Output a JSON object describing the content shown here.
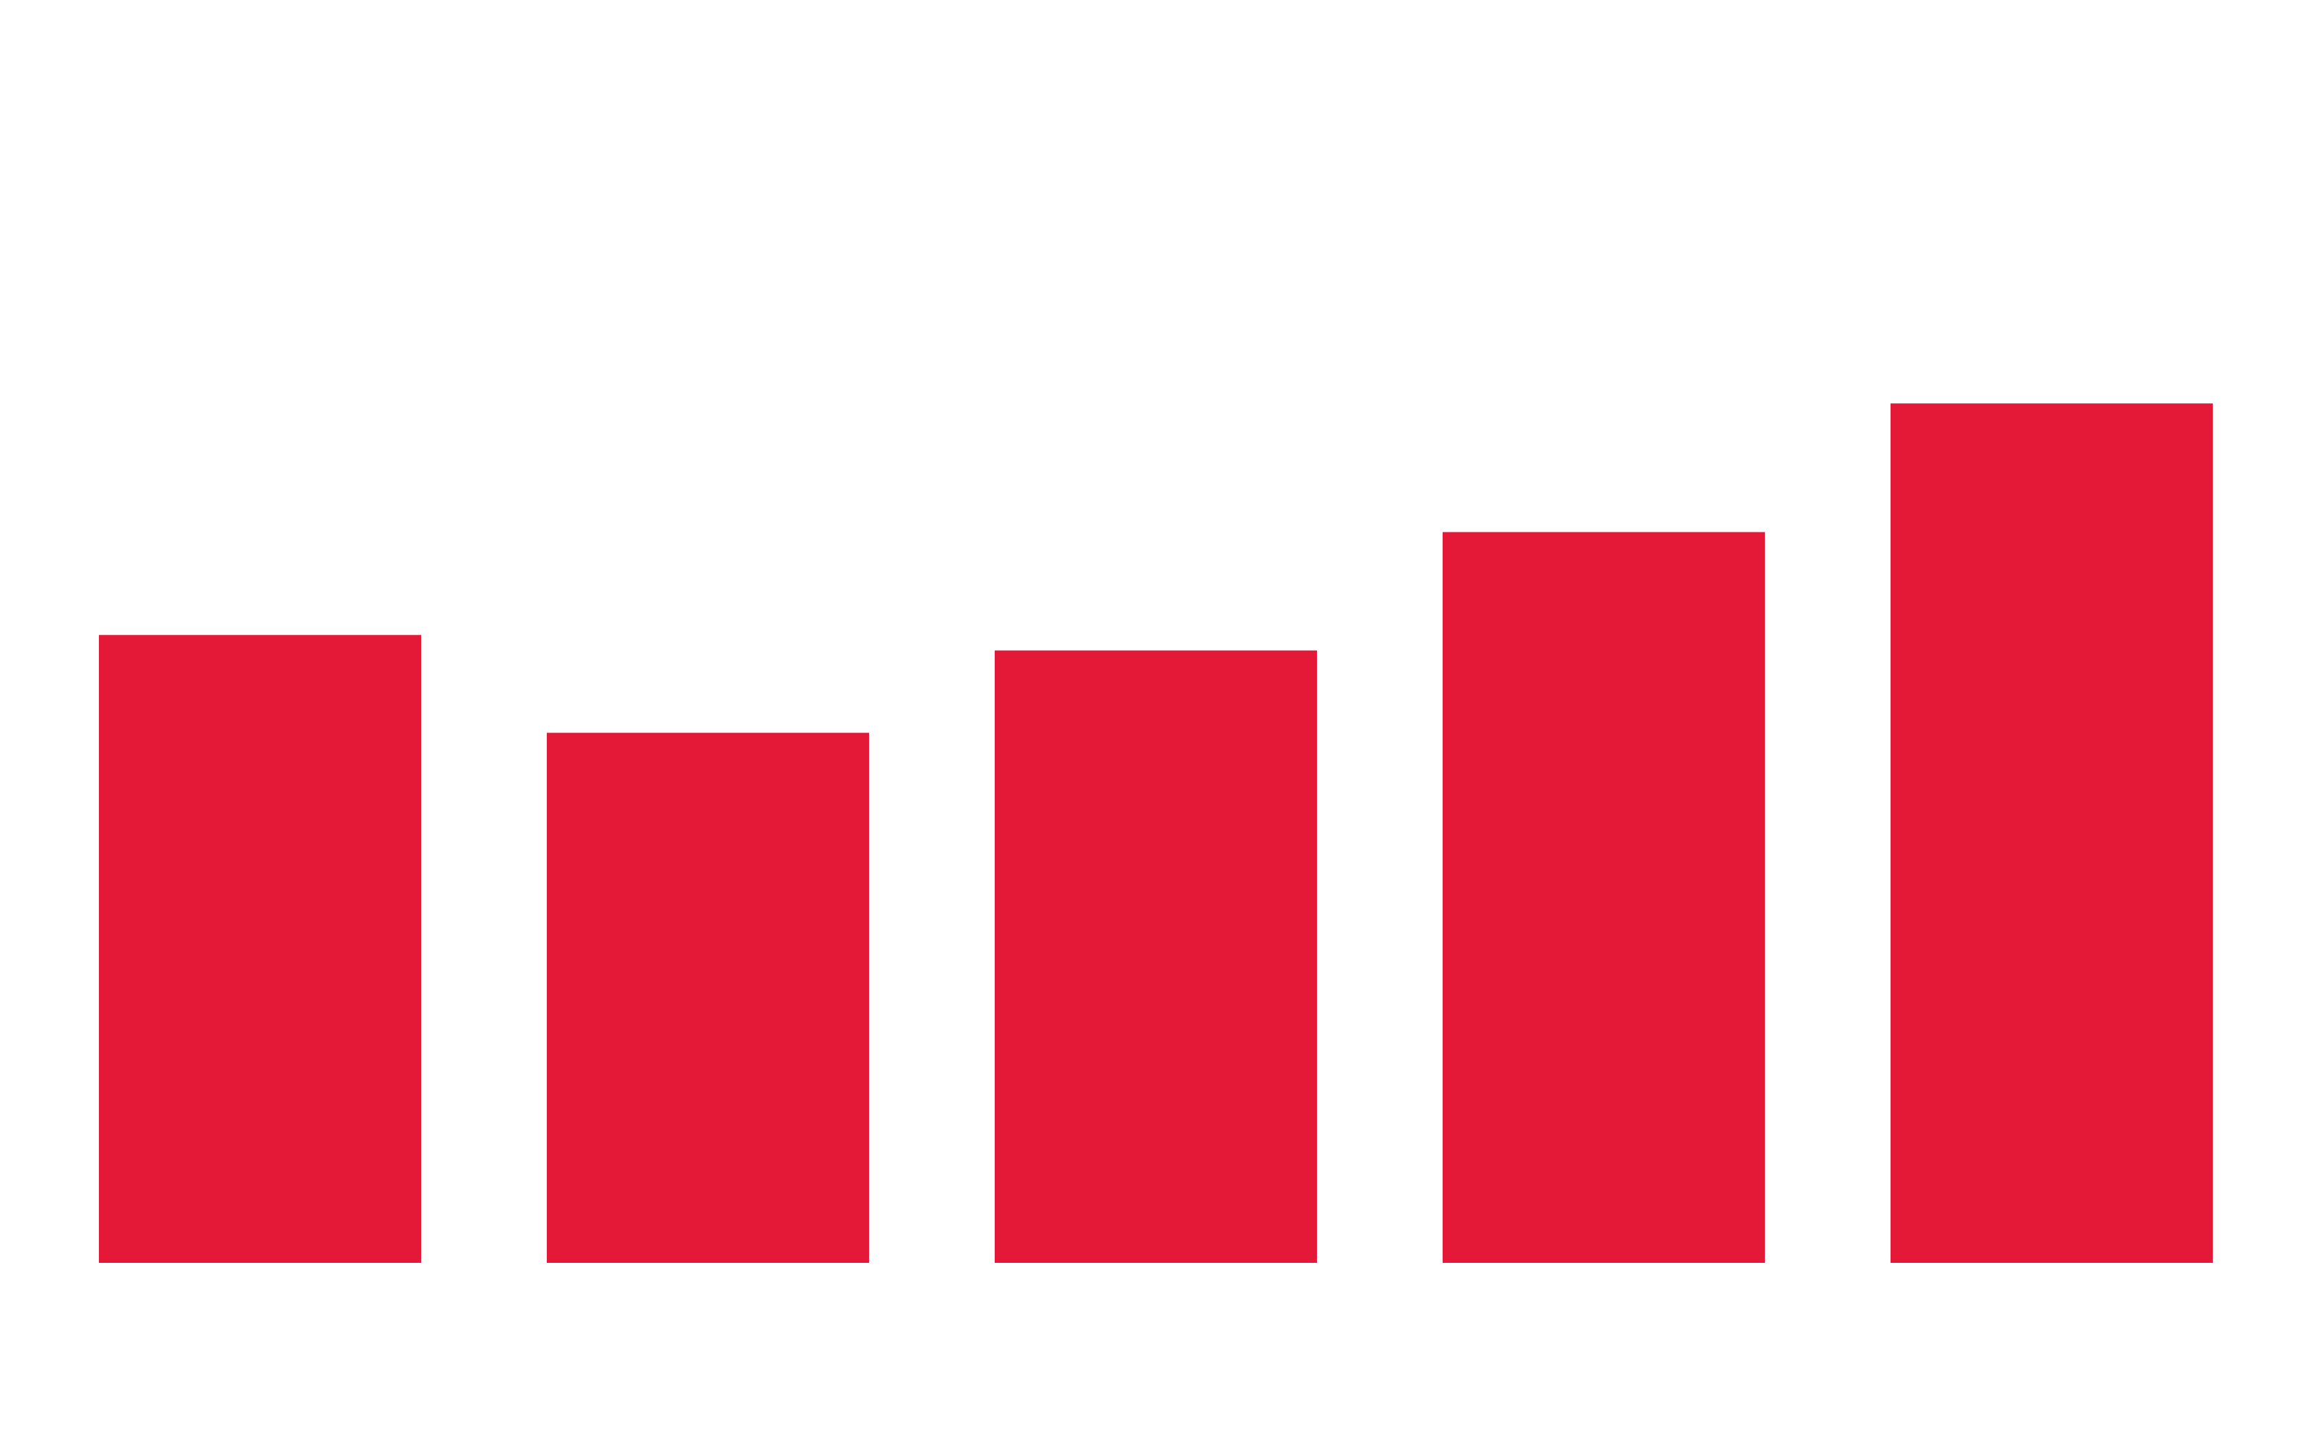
{
  "chart_data": {
    "type": "bar",
    "categories": [
      "",
      "",
      "",
      "",
      ""
    ],
    "values": [
      61,
      51.5,
      59.5,
      71,
      83.5
    ],
    "ylim": [
      0,
      100
    ],
    "grid": false,
    "legend": "none",
    "bar_color": "#e31937",
    "background_color": "#ffffff"
  }
}
